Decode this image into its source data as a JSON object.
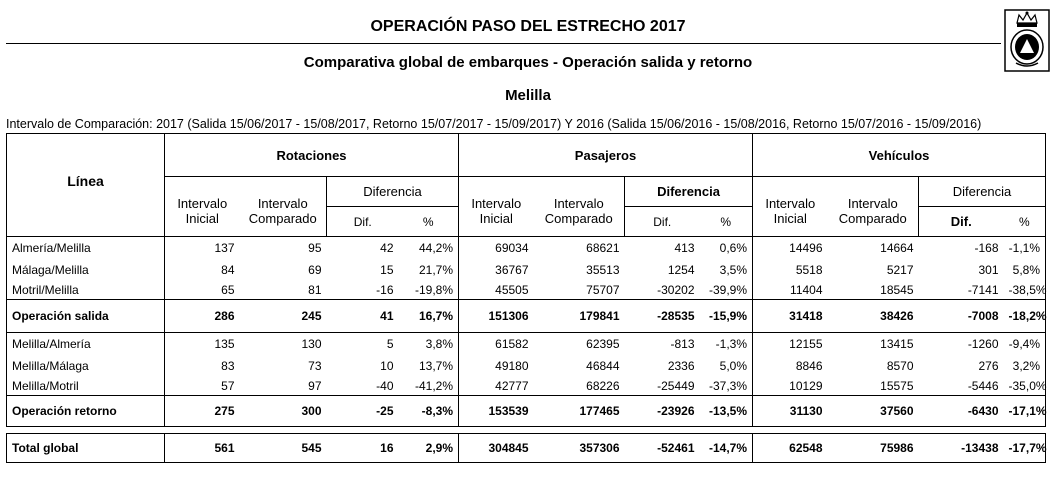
{
  "header": {
    "title": "OPERACIÓN PASO DEL ESTRECHO  2017",
    "subtitle": "Comparativa global de embarques  - Operación salida y retorno",
    "city": "Melilla",
    "interval": "Intervalo de Comparación: 2017 (Salida 15/06/2017 - 15/08/2017, Retorno 15/07/2017 - 15/09/2017) Y 2016 (Salida 15/06/2016 - 15/08/2016, Retorno 15/07/2016 - 15/09/2016)"
  },
  "table": {
    "col_linea": "Línea",
    "groups": [
      "Rotaciones",
      "Pasajeros",
      "Vehículos"
    ],
    "sub_inicial": "Intervalo Inicial",
    "sub_comparado": "Intervalo Comparado",
    "sub_diferencia": "Diferencia",
    "sub_dif": "Dif.",
    "sub_pct": "%",
    "rows": [
      {
        "label": "Almería/Melilla",
        "values": [
          "137",
          "95",
          "42",
          "44,2%",
          "69034",
          "68621",
          "413",
          "0,6%",
          "14496",
          "14664",
          "-168",
          "-1,1%"
        ]
      },
      {
        "label": "Málaga/Melilla",
        "values": [
          "84",
          "69",
          "15",
          "21,7%",
          "36767",
          "35513",
          "1254",
          "3,5%",
          "5518",
          "5217",
          "301",
          "5,8%"
        ]
      },
      {
        "label": "Motril/Melilla",
        "values": [
          "65",
          "81",
          "-16",
          "-19,8%",
          "45505",
          "75707",
          "-30202",
          "-39,9%",
          "11404",
          "18545",
          "-7141",
          "-38,5%"
        ]
      },
      {
        "label": "Operación salida",
        "values": [
          "286",
          "245",
          "41",
          "16,7%",
          "151306",
          "179841",
          "-28535",
          "-15,9%",
          "31418",
          "38426",
          "-7008",
          "-18,2%"
        ]
      },
      {
        "label": "Melilla/Almería",
        "values": [
          "135",
          "130",
          "5",
          "3,8%",
          "61582",
          "62395",
          "-813",
          "-1,3%",
          "12155",
          "13415",
          "-1260",
          "-9,4%"
        ]
      },
      {
        "label": "Melilla/Málaga",
        "values": [
          "83",
          "73",
          "10",
          "13,7%",
          "49180",
          "46844",
          "2336",
          "5,0%",
          "8846",
          "8570",
          "276",
          "3,2%"
        ]
      },
      {
        "label": "Melilla/Motril",
        "values": [
          "57",
          "97",
          "-40",
          "-41,2%",
          "42777",
          "68226",
          "-25449",
          "-37,3%",
          "10129",
          "15575",
          "-5446",
          "-35,0%"
        ]
      },
      {
        "label": "Operación retorno",
        "values": [
          "275",
          "300",
          "-25",
          "-8,3%",
          "153539",
          "177465",
          "-23926",
          "-13,5%",
          "31130",
          "37560",
          "-6430",
          "-17,1%"
        ]
      },
      {
        "label": "Total global",
        "values": [
          "561",
          "545",
          "16",
          "2,9%",
          "304845",
          "357306",
          "-52461",
          "-14,7%",
          "62548",
          "75986",
          "-13438",
          "-17,7%"
        ]
      }
    ]
  }
}
